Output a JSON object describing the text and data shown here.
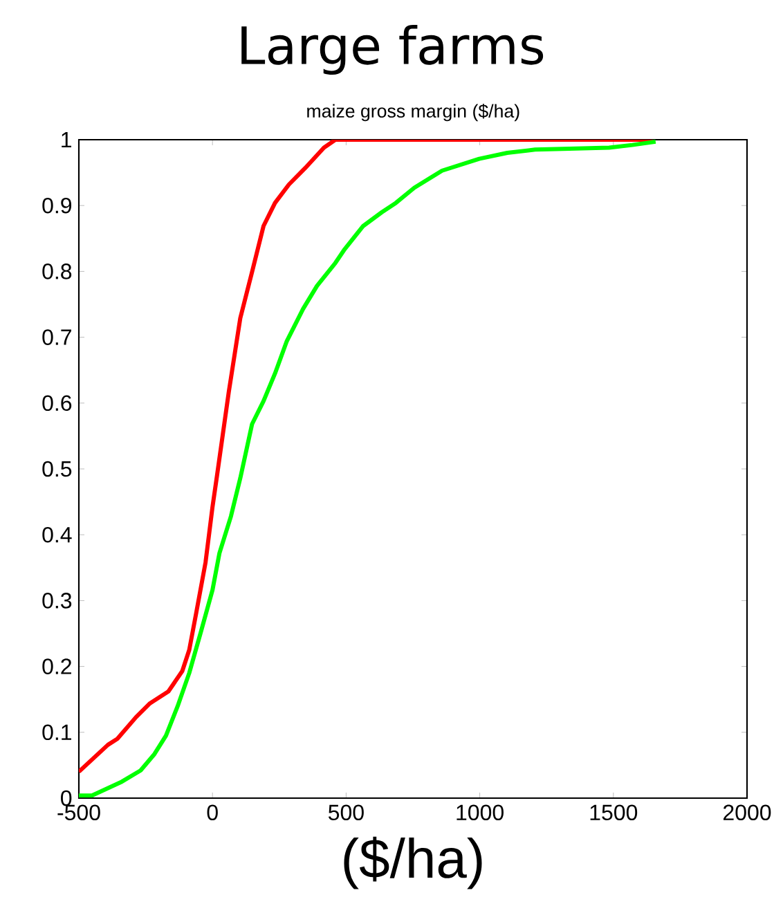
{
  "chart_data": {
    "type": "line",
    "title": "Large farms",
    "subtitle": "maize gross margin ($/ha)",
    "xlabel": "($/ha)",
    "xlim": [
      -500,
      2000
    ],
    "ylim": [
      0,
      1
    ],
    "xticks": [
      -500,
      0,
      500,
      1000,
      1500,
      2000
    ],
    "yticks": [
      0,
      0.1,
      0.2,
      0.3,
      0.4,
      0.5,
      0.6,
      0.7,
      0.8,
      0.9,
      1
    ],
    "grid": false,
    "marker": "none",
    "line_style": "solid",
    "series": [
      {
        "color": "#ff0000",
        "x": [
          -500,
          -391,
          -356,
          -286,
          -234,
          -165,
          -113,
          -87,
          -61,
          -26,
          0,
          17,
          61,
          104,
          148,
          191,
          234,
          286,
          347,
          417,
          460,
          1650
        ],
        "values": [
          0.04,
          0.081,
          0.09,
          0.123,
          0.144,
          0.162,
          0.193,
          0.225,
          0.281,
          0.358,
          0.442,
          0.49,
          0.617,
          0.729,
          0.799,
          0.869,
          0.904,
          0.932,
          0.957,
          0.988,
          1.0,
          1.0
        ]
      },
      {
        "color": "#00ff00",
        "x": [
          -500,
          -451,
          -339,
          -269,
          -217,
          -174,
          -130,
          -87,
          -43,
          0,
          26,
          69,
          104,
          148,
          191,
          234,
          278,
          339,
          391,
          460,
          495,
          564,
          634,
          686,
          755,
          859,
          998,
          1103,
          1207,
          1311,
          1484,
          1571,
          1658
        ],
        "values": [
          0.004,
          0.004,
          0.025,
          0.042,
          0.067,
          0.095,
          0.14,
          0.19,
          0.253,
          0.316,
          0.372,
          0.428,
          0.486,
          0.568,
          0.603,
          0.645,
          0.694,
          0.743,
          0.778,
          0.813,
          0.834,
          0.869,
          0.89,
          0.904,
          0.927,
          0.953,
          0.971,
          0.98,
          0.985,
          0.986,
          0.988,
          0.992,
          0.997
        ]
      }
    ]
  }
}
